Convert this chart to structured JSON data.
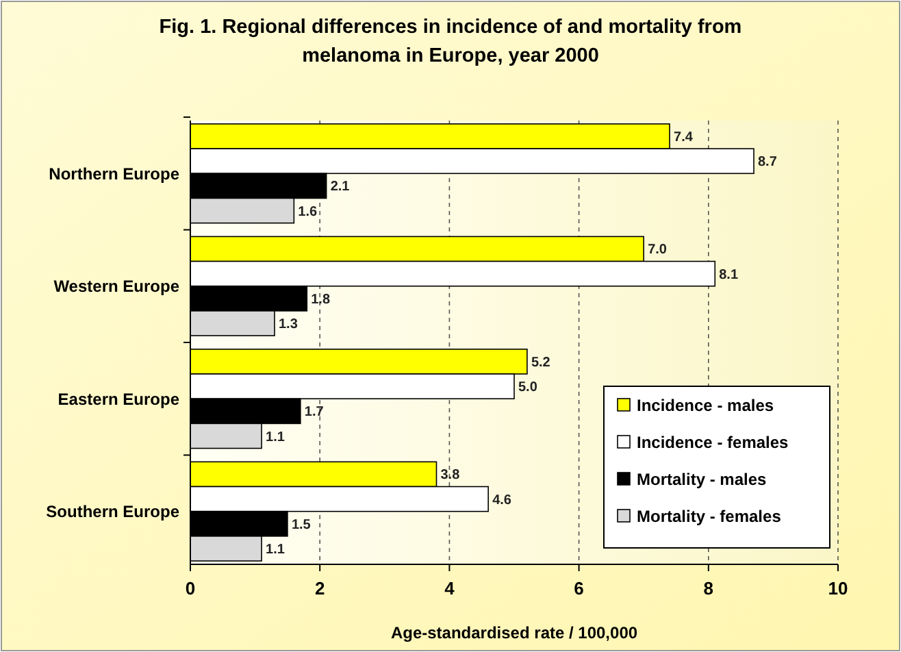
{
  "chart_data": {
    "type": "bar",
    "orientation": "horizontal",
    "title": "Fig. 1. Regional differences in incidence of and mortality from melanoma in Europe, year 2000",
    "xlabel": "Age-standardised rate / 100,000",
    "categories": [
      "Northern Europe",
      "Western Europe",
      "Eastern Europe",
      "Southern Europe"
    ],
    "series": [
      {
        "name": "Incidence - males",
        "color": "#ffff00",
        "values": [
          7.4,
          7.0,
          5.2,
          3.8
        ],
        "value_labels": [
          "7.4",
          "7.0",
          "5.2",
          "3.8"
        ]
      },
      {
        "name": "Incidence - females",
        "color": "#ffffff",
        "values": [
          8.7,
          8.1,
          5.0,
          4.6
        ],
        "value_labels": [
          "8.7",
          "8.1",
          "5.0",
          "4.6"
        ]
      },
      {
        "name": "Mortality - males",
        "color": "#000000",
        "values": [
          2.1,
          1.8,
          1.7,
          1.5
        ],
        "value_labels": [
          "2.1",
          "1.8",
          "1.7",
          "1.5"
        ]
      },
      {
        "name": "Mortality - females",
        "color": "#d9d9d9",
        "values": [
          1.6,
          1.3,
          1.1,
          1.1
        ],
        "value_labels": [
          "1.6",
          "1.3",
          "1.1",
          "1.1"
        ]
      }
    ],
    "xlim": [
      0,
      10
    ],
    "xticks": [
      0,
      2,
      4,
      6,
      8,
      10
    ],
    "grid": "x",
    "legend": "bottom right"
  }
}
